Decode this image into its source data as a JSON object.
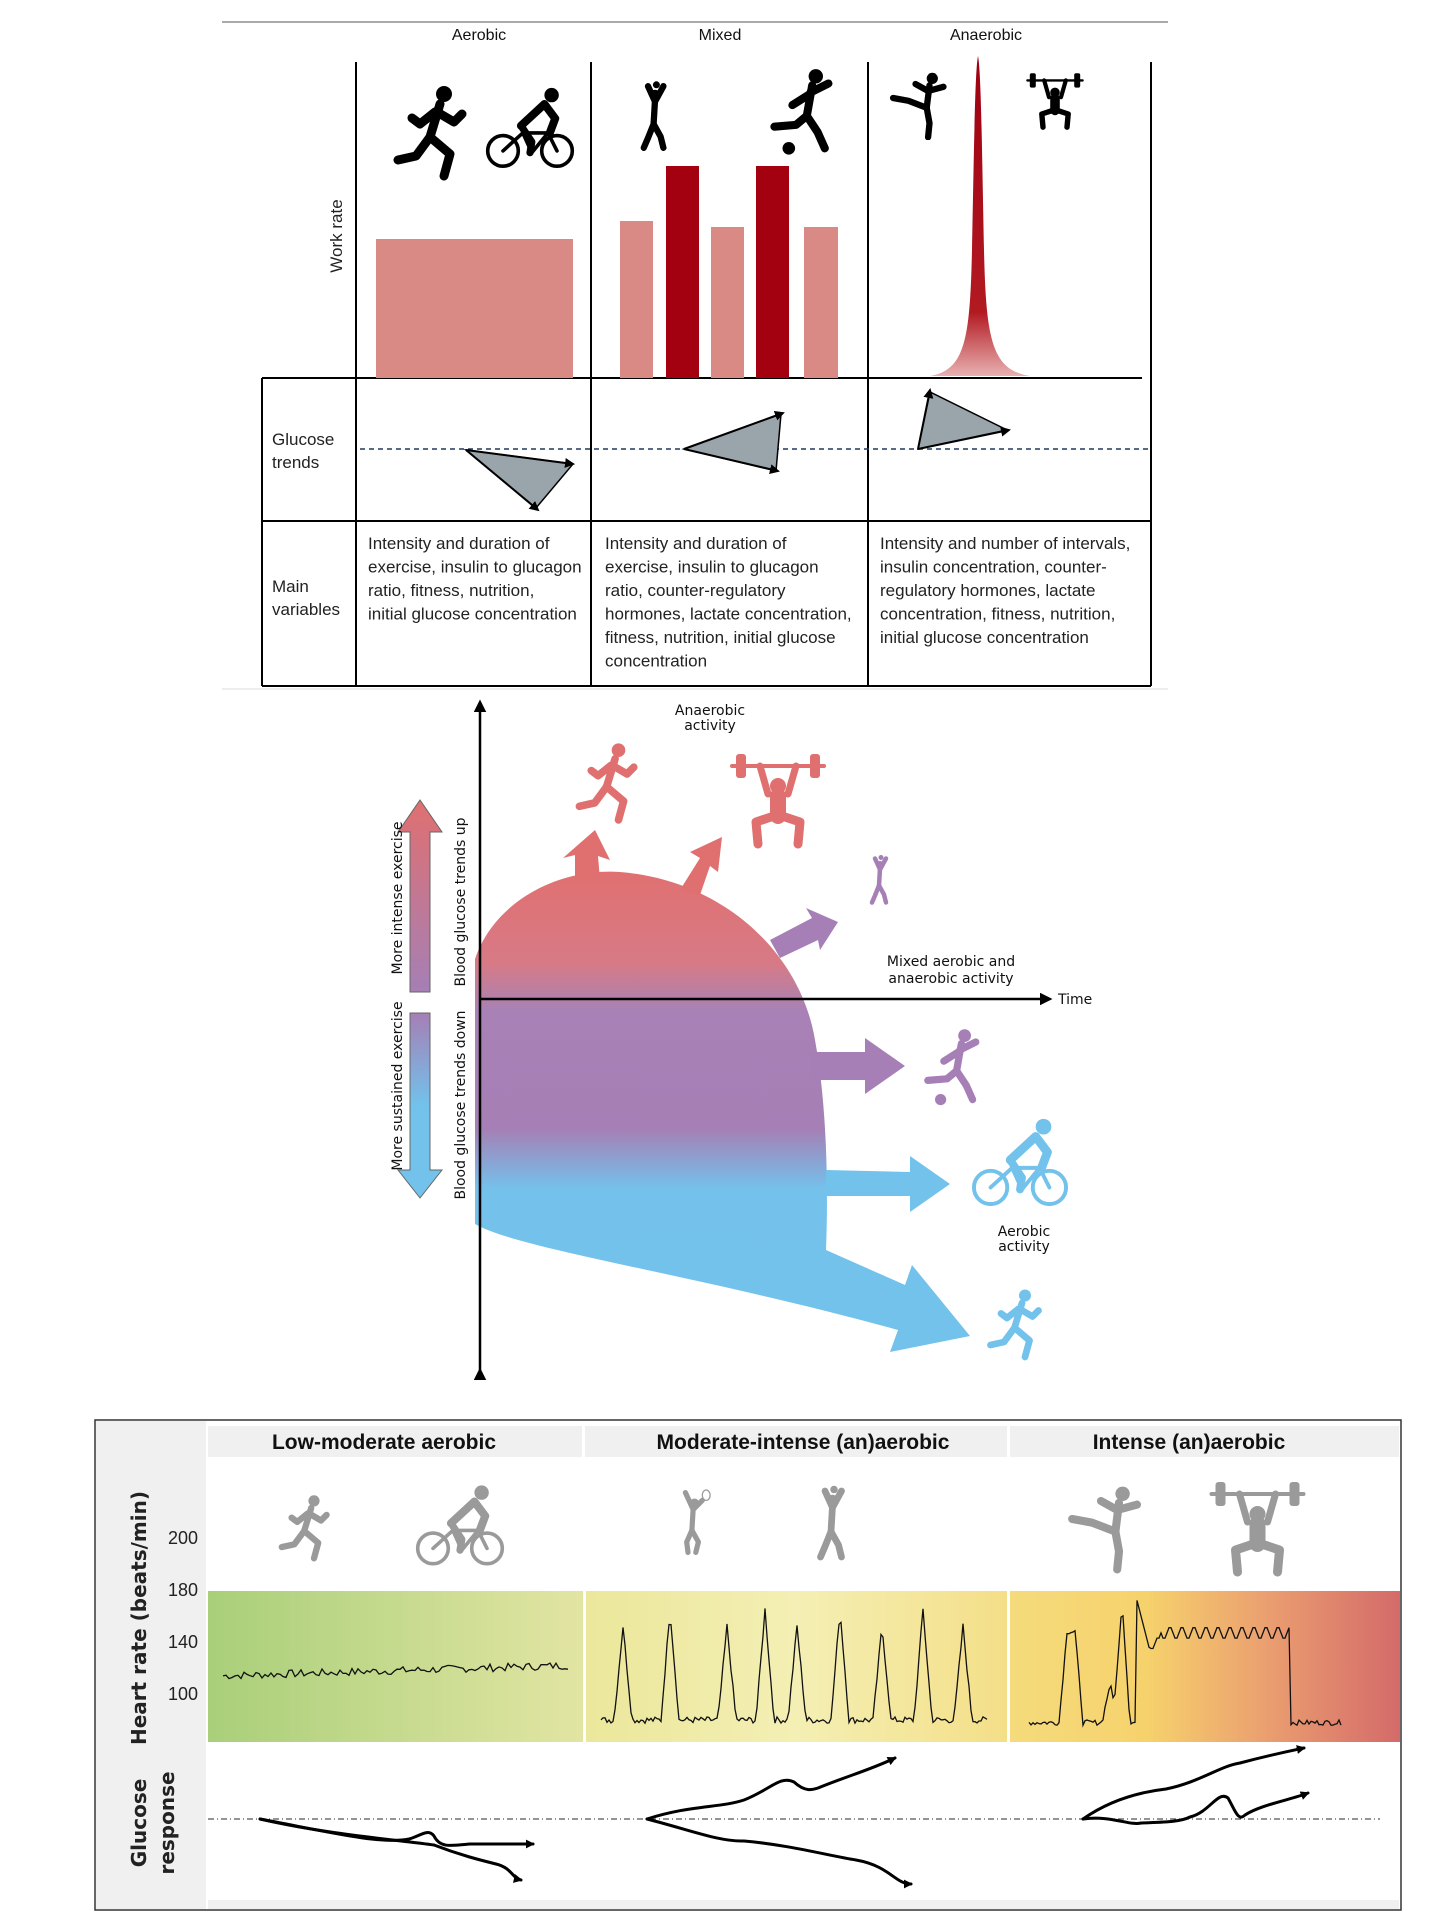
{
  "top_panel": {
    "columns": [
      "Aerobic",
      "Mixed",
      "Anaerobic"
    ],
    "work_rate_label": "Work rate",
    "glucose_trends_label": [
      "Glucose",
      "trends"
    ],
    "main_variables_label": [
      "Main",
      "variables"
    ],
    "main_variables": [
      [
        "Intensity and duration of",
        "exercise, insulin to glucagon",
        "ratio, fitness, nutrition,",
        "initial glucose concentration"
      ],
      [
        "Intensity and duration of",
        "exercise, insulin to glucagon",
        "ratio, counter-regulatory",
        "hormones, lactate concentration,",
        "fitness, nutrition, initial glucose",
        "concentration"
      ],
      [
        "Intensity and number of intervals,",
        "insulin concentration, counter-",
        "regulatory hormones, lactate",
        "concentration, fitness, nutrition,",
        "initial glucose concentration"
      ]
    ],
    "colors": {
      "bar_light": "#d98a85",
      "bar_dark": "#a30010",
      "triangle": "#9aa5ab"
    }
  },
  "middle_panel": {
    "anaerobic_label": [
      "Anaerobic",
      "activity"
    ],
    "mixed_label": [
      "Mixed aerobic and",
      "anaerobic activity"
    ],
    "aerobic_label": [
      "Aerobic",
      "activity"
    ],
    "time_label": "Time",
    "more_intense": "More intense exercise",
    "more_sustained": "More sustained exercise",
    "trends_up": "Blood glucose trends up",
    "trends_down": "Blood glucose trends down",
    "colors": {
      "anaerobic": "#e07070",
      "mixed": "#a57fb5",
      "aerobic": "#72c2ec"
    }
  },
  "bottom_panel": {
    "columns": [
      "Low-moderate aerobic",
      "Moderate-intense (an)aerobic",
      "Intense (an)aerobic"
    ],
    "heart_rate_label": "Heart rate (beats/min)",
    "heart_rate_ticks": [
      "200",
      "180",
      "140",
      "100"
    ],
    "glucose_response_label": [
      "Glucose",
      "response"
    ],
    "colors": {
      "icon": "#9a9a9a",
      "zone_low": "#a9cf7a",
      "zone_mid": "#f3eeb0",
      "zone_high": "#d46a6a"
    }
  }
}
